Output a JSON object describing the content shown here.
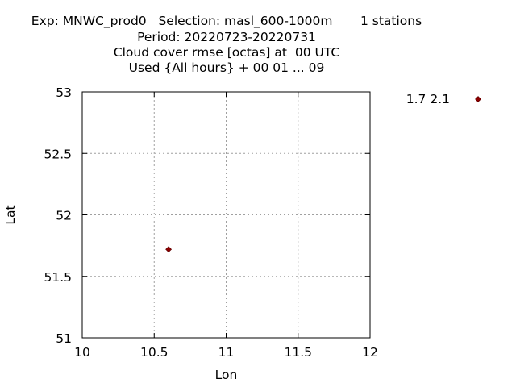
{
  "title_lines": [
    "Exp: MNWC_prod0   Selection: masl_600-1000m       1 stations",
    "Period: 20220723-20220731",
    "Cloud cover rmse [octas] at  00 UTC",
    "Used {All hours} + 00 01 ... 09"
  ],
  "chart_data": {
    "type": "scatter",
    "title": "Exp: MNWC_prod0   Selection: masl_600-1000m       1 stations / Period: 20220723-20220731 / Cloud cover rmse [octas] at  00 UTC / Used {All hours} + 00 01 ... 09",
    "xlabel": "Lon",
    "ylabel": "Lat",
    "xlim": [
      10,
      12
    ],
    "ylim": [
      51,
      53
    ],
    "xticks": [
      "10",
      "10.5",
      "11",
      "11.5",
      "12"
    ],
    "yticks": [
      "51",
      "51.5",
      "52",
      "52.5",
      "53"
    ],
    "grid": true,
    "points": [
      {
        "x": 10.6,
        "y": 51.72
      }
    ],
    "legend": {
      "label": "1.7 2.1",
      "placement": "top-right outside"
    },
    "marker_color": "#8b0000"
  }
}
